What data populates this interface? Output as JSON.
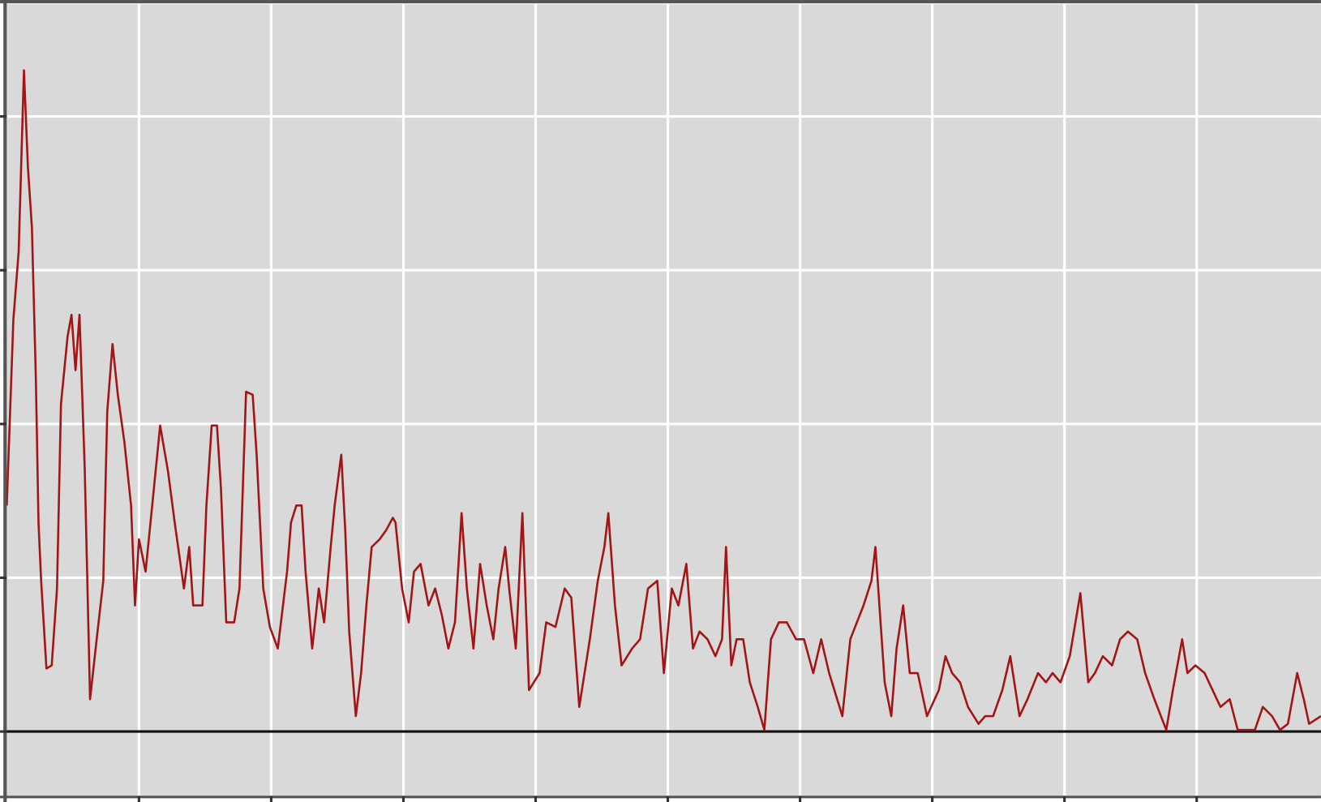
{
  "chart_data": {
    "type": "line",
    "x": [
      0,
      0.05,
      0.09,
      0.13,
      0.16,
      0.19,
      0.22,
      0.24,
      0.26,
      0.3,
      0.34,
      0.38,
      0.41,
      0.46,
      0.49,
      0.52,
      0.55,
      0.59,
      0.63,
      0.68,
      0.73,
      0.76,
      0.8,
      0.84,
      0.89,
      0.94,
      0.97,
      1.0,
      1.05,
      1.1,
      1.16,
      1.22,
      1.27,
      1.34,
      1.38,
      1.41,
      1.48,
      1.51,
      1.55,
      1.59,
      1.62,
      1.66,
      1.72,
      1.76,
      1.81,
      1.86,
      1.89,
      1.94,
      1.99,
      2.05,
      2.12,
      2.15,
      2.19,
      2.23,
      2.26,
      2.31,
      2.36,
      2.4,
      2.45,
      2.48,
      2.53,
      2.56,
      2.59,
      2.64,
      2.68,
      2.72,
      2.76,
      2.82,
      2.87,
      2.92,
      2.94,
      2.99,
      3.04,
      3.08,
      3.13,
      3.19,
      3.24,
      3.29,
      3.34,
      3.39,
      3.44,
      3.48,
      3.53,
      3.58,
      3.63,
      3.68,
      3.72,
      3.77,
      3.8,
      3.85,
      3.9,
      3.95,
      4.03,
      4.08,
      4.15,
      4.22,
      4.27,
      4.33,
      4.41,
      4.47,
      4.52,
      4.55,
      4.6,
      4.65,
      4.73,
      4.79,
      4.85,
      4.92,
      4.97,
      5.03,
      5.08,
      5.14,
      5.19,
      5.24,
      5.3,
      5.36,
      5.41,
      5.44,
      5.48,
      5.52,
      5.57,
      5.62,
      5.68,
      5.73,
      5.78,
      5.84,
      5.9,
      5.97,
      6.03,
      6.1,
      6.16,
      6.22,
      6.32,
      6.38,
      6.48,
      6.54,
      6.57,
      6.64,
      6.69,
      6.73,
      6.78,
      6.83,
      6.89,
      6.96,
      7.05,
      7.1,
      7.15,
      7.21,
      7.27,
      7.35,
      7.4,
      7.46,
      7.53,
      7.59,
      7.66,
      7.72,
      7.8,
      7.86,
      7.91,
      7.97,
      8.04,
      8.12,
      8.18,
      8.23,
      8.29,
      8.36,
      8.42,
      8.48,
      8.55,
      8.61,
      8.68,
      8.77,
      8.82,
      8.89,
      8.93,
      8.99,
      9.06,
      9.12,
      9.18,
      9.25,
      9.31,
      9.44,
      9.5,
      9.57,
      9.63,
      9.69,
      9.76,
      9.81,
      9.85,
      9.94
    ],
    "series": [
      {
        "color": "#a31515",
        "values": [
          1.47,
          2.68,
          3.12,
          4.3,
          3.67,
          3.28,
          2.3,
          1.36,
          0.98,
          0.41,
          0.43,
          0.93,
          2.13,
          2.57,
          2.71,
          2.35,
          2.71,
          1.7,
          0.21,
          0.6,
          0.98,
          2.08,
          2.52,
          2.19,
          1.88,
          1.47,
          0.82,
          1.25,
          1.04,
          1.47,
          1.99,
          1.69,
          1.36,
          0.93,
          1.2,
          0.82,
          0.82,
          1.47,
          1.99,
          1.99,
          1.58,
          0.71,
          0.71,
          0.93,
          2.21,
          2.19,
          1.8,
          0.93,
          0.68,
          0.54,
          1.04,
          1.36,
          1.47,
          1.47,
          1.04,
          0.54,
          0.93,
          0.71,
          1.2,
          1.47,
          1.8,
          1.31,
          0.65,
          0.1,
          0.38,
          0.82,
          1.2,
          1.25,
          1.31,
          1.39,
          1.36,
          0.93,
          0.71,
          1.04,
          1.09,
          0.82,
          0.93,
          0.76,
          0.54,
          0.71,
          1.42,
          0.93,
          0.54,
          1.09,
          0.82,
          0.6,
          0.93,
          1.2,
          0.93,
          0.54,
          1.42,
          0.27,
          0.38,
          0.71,
          0.68,
          0.93,
          0.87,
          0.16,
          0.6,
          0.98,
          1.2,
          1.42,
          0.82,
          0.43,
          0.54,
          0.6,
          0.93,
          0.98,
          0.38,
          0.93,
          0.82,
          1.09,
          0.54,
          0.65,
          0.6,
          0.49,
          0.6,
          1.2,
          0.43,
          0.6,
          0.6,
          0.32,
          0.16,
          0.01,
          0.6,
          0.71,
          0.71,
          0.6,
          0.6,
          0.38,
          0.6,
          0.38,
          0.1,
          0.6,
          0.82,
          0.98,
          1.2,
          0.32,
          0.1,
          0.54,
          0.82,
          0.38,
          0.38,
          0.1,
          0.27,
          0.49,
          0.38,
          0.32,
          0.16,
          0.05,
          0.1,
          0.1,
          0.27,
          0.49,
          0.1,
          0.21,
          0.38,
          0.32,
          0.38,
          0.32,
          0.49,
          0.9,
          0.32,
          0.38,
          0.49,
          0.43,
          0.6,
          0.65,
          0.6,
          0.38,
          0.21,
          0.01,
          0.27,
          0.6,
          0.38,
          0.43,
          0.38,
          0.27,
          0.16,
          0.21,
          0.01,
          0.01,
          0.16,
          0.1,
          0.01,
          0.05,
          0.38,
          0.21,
          0.05,
          0.1
        ]
      }
    ],
    "xlim": [
      0,
      9.94
    ],
    "xticks": [
      1,
      2,
      3,
      4,
      5,
      6,
      7,
      8,
      9
    ],
    "ylim": [
      -0.42,
      4.73
    ],
    "yticks": [
      0,
      1,
      2,
      3,
      4
    ],
    "grid": true
  }
}
